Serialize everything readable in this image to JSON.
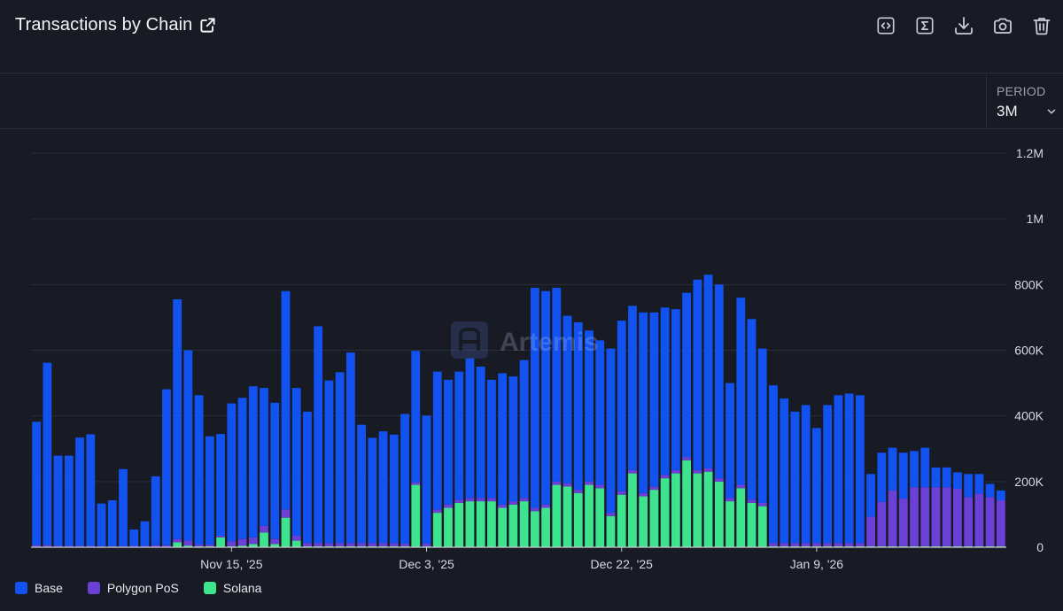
{
  "header": {
    "title": "Transactions by Chain"
  },
  "toolbar": {
    "items": [
      {
        "icon": "code-icon"
      },
      {
        "icon": "sigma-icon"
      },
      {
        "icon": "download-icon"
      },
      {
        "icon": "camera-icon"
      },
      {
        "icon": "trash-icon"
      }
    ]
  },
  "period": {
    "label": "PERIOD",
    "value": "3M"
  },
  "watermark": {
    "text": "Artemis"
  },
  "colors": {
    "base": "#1152f0",
    "polygon": "#6c3fd6",
    "solana": "#3ee38e",
    "background": "#181b24",
    "grid": "#2a2e39"
  },
  "chart_data": {
    "type": "bar",
    "stacked": true,
    "title": "Transactions by Chain",
    "ylim": [
      0,
      1200000
    ],
    "yticks": [
      0,
      200000,
      400000,
      600000,
      800000,
      1000000,
      1200000
    ],
    "ytick_labels": [
      "0",
      "200K",
      "400K",
      "600K",
      "800K",
      "1M",
      "1.2M"
    ],
    "xtick_labels": [
      {
        "label": "Nov 15, '25",
        "index": 18
      },
      {
        "label": "Dec 3, '25",
        "index": 36
      },
      {
        "label": "Dec 22, '25",
        "index": 54
      },
      {
        "label": "Jan 9, '26",
        "index": 72
      }
    ],
    "legend_position": "bottom-left",
    "series": [
      {
        "name": "Base",
        "color": "#1152f0",
        "values": [
          375000,
          555000,
          275000,
          275000,
          330000,
          340000,
          130000,
          140000,
          235000,
          50000,
          75000,
          210000,
          475000,
          730000,
          580000,
          455000,
          330000,
          310000,
          420000,
          430000,
          460000,
          420000,
          415000,
          665000,
          450000,
          400000,
          660000,
          495000,
          520000,
          580000,
          360000,
          320000,
          340000,
          330000,
          395000,
          400000,
          390000,
          420000,
          380000,
          390000,
          425000,
          400000,
          360000,
          400000,
          380000,
          420000,
          670000,
          650000,
          590000,
          510000,
          510000,
          460000,
          440000,
          500000,
          520000,
          500000,
          550000,
          530000,
          510000,
          490000,
          500000,
          580000,
          590000,
          590000,
          350000,
          570000,
          550000,
          470000,
          480000,
          440000,
          400000,
          420000,
          350000,
          420000,
          450000,
          455000,
          450000,
          130000,
          150000,
          130000,
          140000,
          110000,
          120000,
          60000,
          60000,
          50000,
          70000,
          60000,
          40000,
          30000
        ]
      },
      {
        "name": "Polygon PoS",
        "color": "#6c3fd6",
        "values": [
          5000,
          5000,
          3000,
          3000,
          3000,
          3000,
          2000,
          2000,
          2000,
          3000,
          3000,
          5000,
          5000,
          10000,
          15000,
          5000,
          5000,
          5000,
          15000,
          20000,
          20000,
          20000,
          15000,
          25000,
          15000,
          10000,
          10000,
          10000,
          10000,
          10000,
          10000,
          10000,
          10000,
          10000,
          8000,
          8000,
          8000,
          10000,
          10000,
          10000,
          10000,
          10000,
          10000,
          10000,
          10000,
          10000,
          10000,
          10000,
          10000,
          10000,
          10000,
          10000,
          10000,
          10000,
          10000,
          10000,
          10000,
          10000,
          10000,
          10000,
          10000,
          10000,
          10000,
          10000,
          10000,
          10000,
          10000,
          10000,
          10000,
          10000,
          10000,
          10000,
          10000,
          10000,
          10000,
          10000,
          10000,
          90000,
          135000,
          170000,
          145000,
          180000,
          180000,
          180000,
          180000,
          175000,
          150000,
          160000,
          150000,
          140000
        ]
      },
      {
        "name": "Solana",
        "color": "#3ee38e",
        "values": [
          2000,
          2000,
          1000,
          1000,
          1000,
          1000,
          1000,
          1000,
          1000,
          1000,
          1000,
          1000,
          1000,
          15000,
          5000,
          3000,
          3000,
          30000,
          3000,
          5000,
          10000,
          45000,
          10000,
          90000,
          20000,
          3000,
          3000,
          3000,
          3000,
          3000,
          3000,
          3000,
          3000,
          3000,
          3000,
          190000,
          3000,
          105000,
          120000,
          135000,
          140000,
          140000,
          140000,
          120000,
          130000,
          140000,
          110000,
          120000,
          190000,
          185000,
          165000,
          190000,
          180000,
          95000,
          160000,
          225000,
          155000,
          175000,
          210000,
          225000,
          265000,
          225000,
          230000,
          200000,
          140000,
          180000,
          135000,
          125000,
          3000,
          3000,
          3000,
          3000,
          3000,
          3000,
          3000,
          3000,
          3000,
          3000,
          3000,
          3000,
          3000,
          3000,
          3000,
          3000,
          3000,
          3000,
          3000,
          3000,
          3000,
          3000
        ]
      }
    ]
  }
}
